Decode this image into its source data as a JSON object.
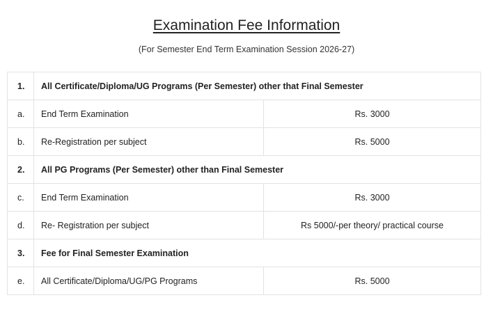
{
  "title": "Examination Fee Information",
  "subtitle": "(For Semester End Term Examination Session 2026-27)",
  "rows": [
    {
      "type": "head",
      "num": "1.",
      "desc": "All Certificate/Diploma/UG Programs (Per Semester) other that Final Semester"
    },
    {
      "type": "item",
      "num": "a.",
      "desc": "End Term Examination",
      "fee": "Rs. 3000"
    },
    {
      "type": "item",
      "num": "b.",
      "desc": "Re-Registration per subject",
      "fee": "Rs. 5000"
    },
    {
      "type": "head",
      "num": "2.",
      "desc": "All PG Programs (Per Semester) other than Final Semester"
    },
    {
      "type": "item",
      "num": "c.",
      "desc": "End Term Examination",
      "fee": "Rs. 3000"
    },
    {
      "type": "item",
      "num": "d.",
      "desc": "Re- Registration per subject",
      "fee": "Rs 5000/-per theory/ practical course"
    },
    {
      "type": "head",
      "num": "3.",
      "desc": "Fee for Final Semester Examination"
    },
    {
      "type": "item",
      "num": "e.",
      "desc": "All Certificate/Diploma/UG/PG Programs",
      "fee": "Rs. 5000"
    }
  ]
}
